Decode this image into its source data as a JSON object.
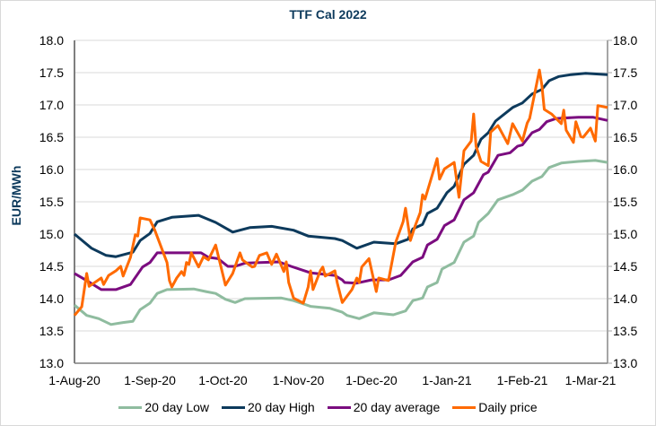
{
  "chart_data": {
    "type": "line",
    "title": "TTF Cal 2022",
    "ylabel": "EUR/MWh",
    "xlabel": "",
    "xlim": [
      "2020-08-01",
      "2021-03-08"
    ],
    "ylim": [
      13.0,
      18.0
    ],
    "ytick_step": 0.5,
    "yticks": [
      "13.0",
      "13.5",
      "14.0",
      "14.5",
      "15.0",
      "15.5",
      "16.0",
      "16.5",
      "17.0",
      "17.5",
      "18.0"
    ],
    "xticks": [
      {
        "label": "1-Aug-20",
        "date": "2020-08-01"
      },
      {
        "label": "1-Sep-20",
        "date": "2020-09-01"
      },
      {
        "label": "1-Oct-20",
        "date": "2020-10-01"
      },
      {
        "label": "1-Nov-20",
        "date": "2020-11-01"
      },
      {
        "label": "1-Dec-20",
        "date": "2020-12-01"
      },
      {
        "label": "1-Jan-21",
        "date": "2021-01-01"
      },
      {
        "label": "1-Feb-21",
        "date": "2021-02-01"
      },
      {
        "label": "1-Mar-21",
        "date": "2021-03-01"
      }
    ],
    "grid": true,
    "secondary_y_axis": true,
    "legend_position": "bottom",
    "series": [
      {
        "name": "20 day Low",
        "color": "#8fbc9f",
        "points": [
          [
            "2020-08-01",
            13.9
          ],
          [
            "2020-08-06",
            13.74
          ],
          [
            "2020-08-11",
            13.69
          ],
          [
            "2020-08-16",
            13.6
          ],
          [
            "2020-08-21",
            13.63
          ],
          [
            "2020-08-25",
            13.65
          ],
          [
            "2020-08-28",
            13.83
          ],
          [
            "2020-09-01",
            13.93
          ],
          [
            "2020-09-04",
            14.08
          ],
          [
            "2020-09-08",
            14.14
          ],
          [
            "2020-09-19",
            14.15
          ],
          [
            "2020-09-24",
            14.11
          ],
          [
            "2020-09-28",
            14.08
          ],
          [
            "2020-10-02",
            13.99
          ],
          [
            "2020-10-06",
            13.94
          ],
          [
            "2020-10-10",
            14.0
          ],
          [
            "2020-10-25",
            14.01
          ],
          [
            "2020-10-30",
            13.97
          ],
          [
            "2020-11-06",
            13.88
          ],
          [
            "2020-11-14",
            13.85
          ],
          [
            "2020-11-19",
            13.79
          ],
          [
            "2020-11-21",
            13.74
          ],
          [
            "2020-11-26",
            13.69
          ],
          [
            "2020-12-02",
            13.78
          ],
          [
            "2020-12-10",
            13.75
          ],
          [
            "2020-12-15",
            13.81
          ],
          [
            "2020-12-18",
            13.97
          ],
          [
            "2020-12-22",
            14.01
          ],
          [
            "2020-12-24",
            14.18
          ],
          [
            "2020-12-28",
            14.25
          ],
          [
            "2020-12-30",
            14.46
          ],
          [
            "2021-01-04",
            14.56
          ],
          [
            "2021-01-08",
            14.875
          ],
          [
            "2021-01-12",
            14.97
          ],
          [
            "2021-01-14",
            15.18
          ],
          [
            "2021-01-18",
            15.32
          ],
          [
            "2021-01-22",
            15.53
          ],
          [
            "2021-01-28",
            15.61
          ],
          [
            "2021-02-01",
            15.68
          ],
          [
            "2021-02-05",
            15.82
          ],
          [
            "2021-02-09",
            15.89
          ],
          [
            "2021-02-12",
            16.03
          ],
          [
            "2021-02-17",
            16.1
          ],
          [
            "2021-02-24",
            16.125
          ],
          [
            "2021-03-03",
            16.14
          ],
          [
            "2021-03-08",
            16.11
          ]
        ]
      },
      {
        "name": "20 day High",
        "color": "#0d3a5c",
        "points": [
          [
            "2020-08-01",
            15.0
          ],
          [
            "2020-08-05",
            14.875
          ],
          [
            "2020-08-08",
            14.78
          ],
          [
            "2020-08-14",
            14.67
          ],
          [
            "2020-08-18",
            14.65
          ],
          [
            "2020-08-25",
            14.72
          ],
          [
            "2020-08-28",
            14.9
          ],
          [
            "2020-09-01",
            15.01
          ],
          [
            "2020-09-04",
            15.19
          ],
          [
            "2020-09-10",
            15.26
          ],
          [
            "2020-09-21",
            15.29
          ],
          [
            "2020-09-28",
            15.18
          ],
          [
            "2020-10-05",
            15.03
          ],
          [
            "2020-10-12",
            15.1
          ],
          [
            "2020-10-21",
            15.12
          ],
          [
            "2020-10-30",
            15.06
          ],
          [
            "2020-11-05",
            14.97
          ],
          [
            "2020-11-16",
            14.93
          ],
          [
            "2020-11-19",
            14.9
          ],
          [
            "2020-11-25",
            14.78
          ],
          [
            "2020-12-02",
            14.875
          ],
          [
            "2020-12-11",
            14.85
          ],
          [
            "2020-12-16",
            14.92
          ],
          [
            "2020-12-18",
            15.08
          ],
          [
            "2020-12-22",
            15.15
          ],
          [
            "2020-12-24",
            15.32
          ],
          [
            "2020-12-28",
            15.4
          ],
          [
            "2021-01-01",
            15.64
          ],
          [
            "2021-01-04",
            15.74
          ],
          [
            "2021-01-08",
            16.08
          ],
          [
            "2021-01-12",
            16.22
          ],
          [
            "2021-01-15",
            16.47
          ],
          [
            "2021-01-18",
            16.57
          ],
          [
            "2021-01-21",
            16.75
          ],
          [
            "2021-01-28",
            16.96
          ],
          [
            "2021-02-01",
            17.03
          ],
          [
            "2021-02-05",
            17.17
          ],
          [
            "2021-02-09",
            17.24
          ],
          [
            "2021-02-12",
            17.375
          ],
          [
            "2021-02-16",
            17.44
          ],
          [
            "2021-02-21",
            17.47
          ],
          [
            "2021-02-27",
            17.49
          ],
          [
            "2021-03-08",
            17.47
          ]
        ]
      },
      {
        "name": "20 day average",
        "color": "#7b0c7f",
        "points": [
          [
            "2020-08-01",
            14.39
          ],
          [
            "2020-08-06",
            14.28
          ],
          [
            "2020-08-12",
            14.14
          ],
          [
            "2020-08-18",
            14.14
          ],
          [
            "2020-08-24",
            14.22
          ],
          [
            "2020-08-29",
            14.49
          ],
          [
            "2020-09-01",
            14.56
          ],
          [
            "2020-09-04",
            14.71
          ],
          [
            "2020-09-16",
            14.71
          ],
          [
            "2020-09-22",
            14.71
          ],
          [
            "2020-09-25",
            14.64
          ],
          [
            "2020-09-29",
            14.62
          ],
          [
            "2020-10-03",
            14.5
          ],
          [
            "2020-10-06",
            14.5
          ],
          [
            "2020-10-10",
            14.55
          ],
          [
            "2020-10-24",
            14.57
          ],
          [
            "2020-10-29",
            14.5
          ],
          [
            "2020-11-06",
            14.4
          ],
          [
            "2020-11-16",
            14.36
          ],
          [
            "2020-11-19",
            14.29
          ],
          [
            "2020-11-20",
            14.25
          ],
          [
            "2020-11-25",
            14.24
          ],
          [
            "2020-12-01",
            14.29
          ],
          [
            "2020-12-08",
            14.29
          ],
          [
            "2020-12-13",
            14.36
          ],
          [
            "2020-12-18",
            14.57
          ],
          [
            "2020-12-22",
            14.64
          ],
          [
            "2020-12-24",
            14.83
          ],
          [
            "2020-12-28",
            14.92
          ],
          [
            "2020-12-31",
            15.13
          ],
          [
            "2021-01-04",
            15.22
          ],
          [
            "2021-01-08",
            15.53
          ],
          [
            "2021-01-12",
            15.64
          ],
          [
            "2021-01-16",
            15.92
          ],
          [
            "2021-01-18",
            15.96
          ],
          [
            "2021-01-22",
            16.22
          ],
          [
            "2021-01-27",
            16.26
          ],
          [
            "2021-01-30",
            16.36
          ],
          [
            "2021-02-01",
            16.38
          ],
          [
            "2021-02-05",
            16.57
          ],
          [
            "2021-02-08",
            16.62
          ],
          [
            "2021-02-11",
            16.74
          ],
          [
            "2021-02-15",
            16.79
          ],
          [
            "2021-02-24",
            16.81
          ],
          [
            "2021-03-02",
            16.81
          ],
          [
            "2021-03-08",
            16.76
          ]
        ]
      },
      {
        "name": "Daily price",
        "color": "#ff6a00",
        "points": [
          [
            "2020-08-01",
            13.74
          ],
          [
            "2020-08-04",
            13.875
          ],
          [
            "2020-08-06",
            14.39
          ],
          [
            "2020-08-07",
            14.19
          ],
          [
            "2020-08-12",
            14.32
          ],
          [
            "2020-08-13",
            14.22
          ],
          [
            "2020-08-15",
            14.36
          ],
          [
            "2020-08-18",
            14.43
          ],
          [
            "2020-08-20",
            14.5
          ],
          [
            "2020-08-21",
            14.35
          ],
          [
            "2020-08-24",
            14.64
          ],
          [
            "2020-08-26",
            14.99
          ],
          [
            "2020-08-27",
            14.97
          ],
          [
            "2020-08-28",
            15.25
          ],
          [
            "2020-09-01",
            15.22
          ],
          [
            "2020-09-03",
            15.06
          ],
          [
            "2020-09-08",
            14.56
          ],
          [
            "2020-09-09",
            14.28
          ],
          [
            "2020-09-10",
            14.18
          ],
          [
            "2020-09-12",
            14.32
          ],
          [
            "2020-09-14",
            14.42
          ],
          [
            "2020-09-15",
            14.36
          ],
          [
            "2020-09-16",
            14.56
          ],
          [
            "2020-09-17",
            14.53
          ],
          [
            "2020-09-18",
            14.71
          ],
          [
            "2020-09-21",
            14.49
          ],
          [
            "2020-09-23",
            14.65
          ],
          [
            "2020-09-25",
            14.6
          ],
          [
            "2020-09-28",
            14.83
          ],
          [
            "2020-10-02",
            14.21
          ],
          [
            "2020-10-05",
            14.39
          ],
          [
            "2020-10-08",
            14.71
          ],
          [
            "2020-10-09",
            14.6
          ],
          [
            "2020-10-13",
            14.49
          ],
          [
            "2020-10-14",
            14.5
          ],
          [
            "2020-10-16",
            14.67
          ],
          [
            "2020-10-19",
            14.71
          ],
          [
            "2020-10-21",
            14.53
          ],
          [
            "2020-10-23",
            14.69
          ],
          [
            "2020-10-26",
            14.42
          ],
          [
            "2020-10-27",
            14.57
          ],
          [
            "2020-10-28",
            14.25
          ],
          [
            "2020-10-30",
            14.01
          ],
          [
            "2020-11-03",
            13.93
          ],
          [
            "2020-11-05",
            14.18
          ],
          [
            "2020-11-06",
            14.43
          ],
          [
            "2020-11-07",
            14.14
          ],
          [
            "2020-11-10",
            14.43
          ],
          [
            "2020-11-11",
            14.49
          ],
          [
            "2020-11-12",
            14.35
          ],
          [
            "2020-11-16",
            14.43
          ],
          [
            "2020-11-17",
            14.24
          ],
          [
            "2020-11-19",
            13.94
          ],
          [
            "2020-11-23",
            14.14
          ],
          [
            "2020-11-25",
            14.32
          ],
          [
            "2020-11-26",
            14.25
          ],
          [
            "2020-11-27",
            14.49
          ],
          [
            "2020-11-30",
            14.62
          ],
          [
            "2020-12-03",
            14.11
          ],
          [
            "2020-12-04",
            14.32
          ],
          [
            "2020-12-08",
            14.28
          ],
          [
            "2020-12-11",
            14.875
          ],
          [
            "2020-12-14",
            15.19
          ],
          [
            "2020-12-15",
            15.4
          ],
          [
            "2020-12-17",
            14.9
          ],
          [
            "2020-12-19",
            15.13
          ],
          [
            "2020-12-21",
            15.33
          ],
          [
            "2020-12-22",
            15.61
          ],
          [
            "2020-12-23",
            15.54
          ],
          [
            "2020-12-28",
            16.17
          ],
          [
            "2020-12-29",
            15.85
          ],
          [
            "2020-12-31",
            16.01
          ],
          [
            "2021-01-04",
            16.11
          ],
          [
            "2021-01-06",
            15.57
          ],
          [
            "2021-01-08",
            16.29
          ],
          [
            "2021-01-11",
            16.44
          ],
          [
            "2021-01-12",
            16.86
          ],
          [
            "2021-01-13",
            16.36
          ],
          [
            "2021-01-15",
            16.125
          ],
          [
            "2021-01-18",
            16.06
          ],
          [
            "2021-01-19",
            16.58
          ],
          [
            "2021-01-22",
            16.68
          ],
          [
            "2021-01-26",
            16.4
          ],
          [
            "2021-01-28",
            16.71
          ],
          [
            "2021-02-01",
            16.44
          ],
          [
            "2021-02-03",
            16.72
          ],
          [
            "2021-02-04",
            16.79
          ],
          [
            "2021-02-08",
            17.54
          ],
          [
            "2021-02-09",
            17.31
          ],
          [
            "2021-02-10",
            16.93
          ],
          [
            "2021-02-13",
            16.86
          ],
          [
            "2021-02-17",
            16.71
          ],
          [
            "2021-02-18",
            16.92
          ],
          [
            "2021-02-19",
            16.61
          ],
          [
            "2021-02-22",
            16.42
          ],
          [
            "2021-02-23",
            16.74
          ],
          [
            "2021-02-25",
            16.51
          ],
          [
            "2021-02-26",
            16.5
          ],
          [
            "2021-03-01",
            16.64
          ],
          [
            "2021-03-03",
            16.44
          ],
          [
            "2021-03-04",
            16.99
          ],
          [
            "2021-03-08",
            16.96
          ]
        ]
      }
    ]
  }
}
